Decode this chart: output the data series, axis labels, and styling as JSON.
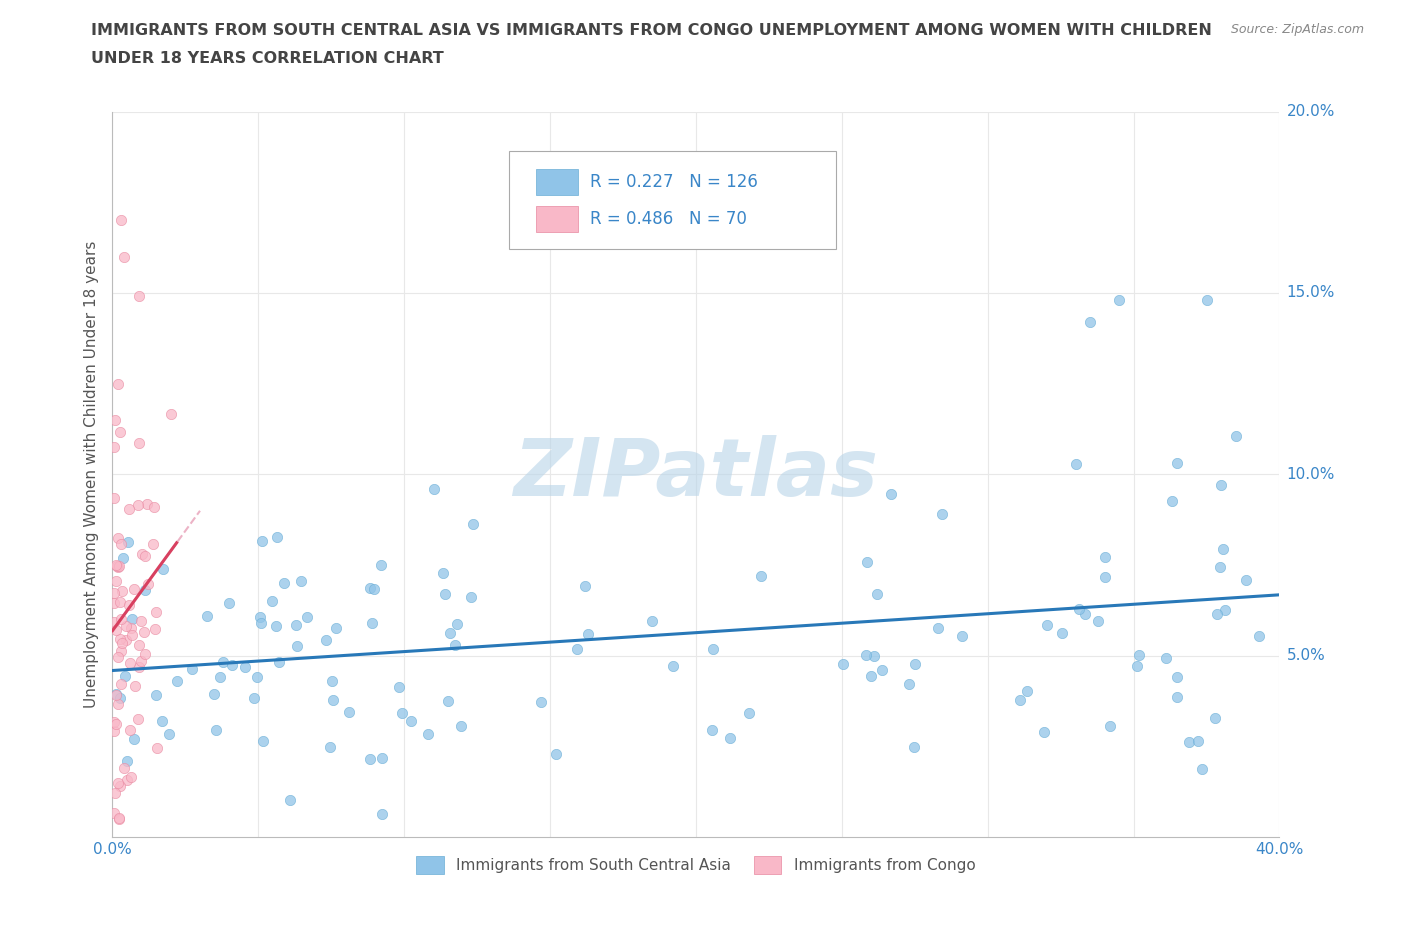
{
  "title_line1": "IMMIGRANTS FROM SOUTH CENTRAL ASIA VS IMMIGRANTS FROM CONGO UNEMPLOYMENT AMONG WOMEN WITH CHILDREN",
  "title_line2": "UNDER 18 YEARS CORRELATION CHART",
  "source_text": "Source: ZipAtlas.com",
  "ylabel": "Unemployment Among Women with Children Under 18 years",
  "xlim": [
    0.0,
    0.4
  ],
  "ylim": [
    0.0,
    0.2
  ],
  "xticks": [
    0.0,
    0.05,
    0.1,
    0.15,
    0.2,
    0.25,
    0.3,
    0.35,
    0.4
  ],
  "yticks": [
    0.0,
    0.05,
    0.1,
    0.15,
    0.2
  ],
  "blue_color": "#90c4e8",
  "blue_edge_color": "#6aaed6",
  "pink_color": "#f9b8c8",
  "pink_edge_color": "#e888a0",
  "blue_line_color": "#2878b8",
  "pink_line_color": "#d84060",
  "pink_dash_color": "#e8a0b8",
  "R_blue": 0.227,
  "N_blue": 126,
  "R_pink": 0.486,
  "N_pink": 70,
  "watermark": "ZIPatlas",
  "watermark_color": "#b8d4e8",
  "title_color": "#444444",
  "axis_label_color": "#555555",
  "tick_label_color": "#3a86c8",
  "legend_label1": "Immigrants from South Central Asia",
  "legend_label2": "Immigrants from Congo",
  "background_color": "#ffffff",
  "grid_color": "#e8e8e8",
  "blue_seed": 12,
  "pink_seed": 55
}
